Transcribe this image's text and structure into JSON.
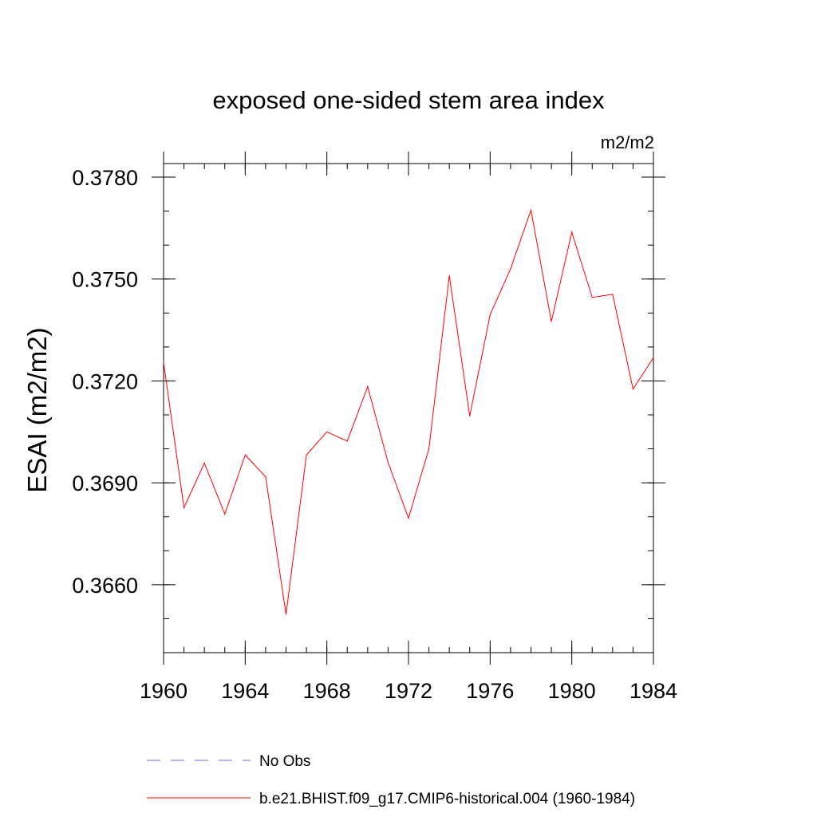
{
  "chart_data": {
    "type": "line",
    "title": "exposed one-sided stem area index",
    "units": "m2/m2",
    "ylabel": "ESAI  (m2/m2)",
    "xlabel": "",
    "xlim": [
      1960,
      1984
    ],
    "ylim": [
      0.364,
      0.3784
    ],
    "x_ticks": [
      "1960",
      "1964",
      "1968",
      "1972",
      "1976",
      "1980",
      "1984"
    ],
    "y_ticks": [
      "0.3660",
      "0.3690",
      "0.3720",
      "0.3750",
      "0.3780"
    ],
    "x_minor_step": 1,
    "y_minor_step": 0.001,
    "x": [
      1960,
      1961,
      1962,
      1963,
      1964,
      1965,
      1966,
      1967,
      1968,
      1969,
      1970,
      1971,
      1972,
      1973,
      1974,
      1975,
      1976,
      1977,
      1978,
      1979,
      1980,
      1981,
      1982,
      1983,
      1984
    ],
    "series": [
      {
        "name": "b.e21.BHIST.f09_g17.CMIP6-historical.004 (1960-1984)",
        "color": "#ff0000",
        "style": "solid",
        "values": [
          0.37255,
          0.36827,
          0.36958,
          0.36808,
          0.36982,
          0.36918,
          0.36513,
          0.36982,
          0.3705,
          0.37023,
          0.37183,
          0.3696,
          0.36796,
          0.37,
          0.3751,
          0.37097,
          0.37395,
          0.3753,
          0.37703,
          0.37375,
          0.37638,
          0.37446,
          0.37455,
          0.37176,
          0.37268
        ]
      }
    ],
    "legend": [
      {
        "label": "No Obs",
        "color": "#6b6bd6",
        "style": "dashed"
      },
      {
        "label": "b.e21.BHIST.f09_g17.CMIP6-historical.004 (1960-1984)",
        "color": "#ff0000",
        "style": "solid"
      }
    ]
  }
}
